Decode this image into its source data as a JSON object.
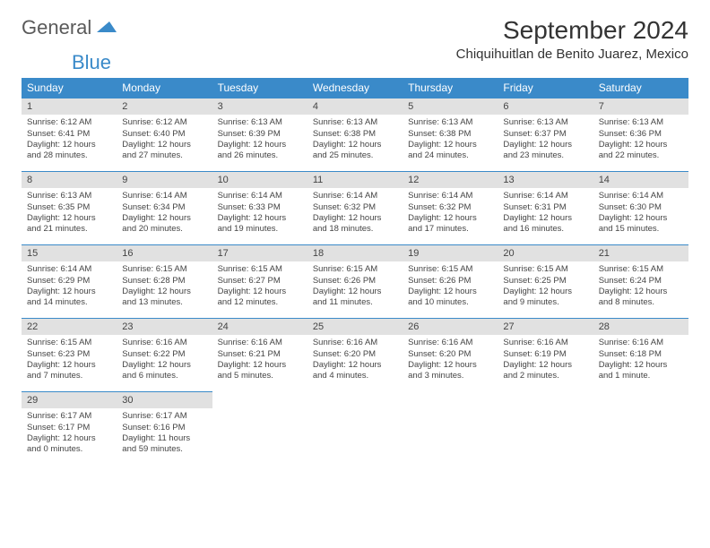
{
  "brand": {
    "part1": "General",
    "part2": "Blue"
  },
  "header": {
    "title": "September 2024",
    "location": "Chiquihuitlan de Benito Juarez, Mexico"
  },
  "style": {
    "accent": "#3a8ac9",
    "header_bg": "#3a8ac9",
    "header_fg": "#ffffff",
    "daynum_bg": "#e1e1e1",
    "text": "#444444",
    "title_fontsize": 28,
    "location_fontsize": 15,
    "th_fontsize": 12,
    "cell_fontsize": 9.5
  },
  "columns": [
    "Sunday",
    "Monday",
    "Tuesday",
    "Wednesday",
    "Thursday",
    "Friday",
    "Saturday"
  ],
  "days": [
    {
      "n": "1",
      "sr": "6:12 AM",
      "ss": "6:41 PM",
      "dl1": "12 hours",
      "dl2": "and 28 minutes."
    },
    {
      "n": "2",
      "sr": "6:12 AM",
      "ss": "6:40 PM",
      "dl1": "12 hours",
      "dl2": "and 27 minutes."
    },
    {
      "n": "3",
      "sr": "6:13 AM",
      "ss": "6:39 PM",
      "dl1": "12 hours",
      "dl2": "and 26 minutes."
    },
    {
      "n": "4",
      "sr": "6:13 AM",
      "ss": "6:38 PM",
      "dl1": "12 hours",
      "dl2": "and 25 minutes."
    },
    {
      "n": "5",
      "sr": "6:13 AM",
      "ss": "6:38 PM",
      "dl1": "12 hours",
      "dl2": "and 24 minutes."
    },
    {
      "n": "6",
      "sr": "6:13 AM",
      "ss": "6:37 PM",
      "dl1": "12 hours",
      "dl2": "and 23 minutes."
    },
    {
      "n": "7",
      "sr": "6:13 AM",
      "ss": "6:36 PM",
      "dl1": "12 hours",
      "dl2": "and 22 minutes."
    },
    {
      "n": "8",
      "sr": "6:13 AM",
      "ss": "6:35 PM",
      "dl1": "12 hours",
      "dl2": "and 21 minutes."
    },
    {
      "n": "9",
      "sr": "6:14 AM",
      "ss": "6:34 PM",
      "dl1": "12 hours",
      "dl2": "and 20 minutes."
    },
    {
      "n": "10",
      "sr": "6:14 AM",
      "ss": "6:33 PM",
      "dl1": "12 hours",
      "dl2": "and 19 minutes."
    },
    {
      "n": "11",
      "sr": "6:14 AM",
      "ss": "6:32 PM",
      "dl1": "12 hours",
      "dl2": "and 18 minutes."
    },
    {
      "n": "12",
      "sr": "6:14 AM",
      "ss": "6:32 PM",
      "dl1": "12 hours",
      "dl2": "and 17 minutes."
    },
    {
      "n": "13",
      "sr": "6:14 AM",
      "ss": "6:31 PM",
      "dl1": "12 hours",
      "dl2": "and 16 minutes."
    },
    {
      "n": "14",
      "sr": "6:14 AM",
      "ss": "6:30 PM",
      "dl1": "12 hours",
      "dl2": "and 15 minutes."
    },
    {
      "n": "15",
      "sr": "6:14 AM",
      "ss": "6:29 PM",
      "dl1": "12 hours",
      "dl2": "and 14 minutes."
    },
    {
      "n": "16",
      "sr": "6:15 AM",
      "ss": "6:28 PM",
      "dl1": "12 hours",
      "dl2": "and 13 minutes."
    },
    {
      "n": "17",
      "sr": "6:15 AM",
      "ss": "6:27 PM",
      "dl1": "12 hours",
      "dl2": "and 12 minutes."
    },
    {
      "n": "18",
      "sr": "6:15 AM",
      "ss": "6:26 PM",
      "dl1": "12 hours",
      "dl2": "and 11 minutes."
    },
    {
      "n": "19",
      "sr": "6:15 AM",
      "ss": "6:26 PM",
      "dl1": "12 hours",
      "dl2": "and 10 minutes."
    },
    {
      "n": "20",
      "sr": "6:15 AM",
      "ss": "6:25 PM",
      "dl1": "12 hours",
      "dl2": "and 9 minutes."
    },
    {
      "n": "21",
      "sr": "6:15 AM",
      "ss": "6:24 PM",
      "dl1": "12 hours",
      "dl2": "and 8 minutes."
    },
    {
      "n": "22",
      "sr": "6:15 AM",
      "ss": "6:23 PM",
      "dl1": "12 hours",
      "dl2": "and 7 minutes."
    },
    {
      "n": "23",
      "sr": "6:16 AM",
      "ss": "6:22 PM",
      "dl1": "12 hours",
      "dl2": "and 6 minutes."
    },
    {
      "n": "24",
      "sr": "6:16 AM",
      "ss": "6:21 PM",
      "dl1": "12 hours",
      "dl2": "and 5 minutes."
    },
    {
      "n": "25",
      "sr": "6:16 AM",
      "ss": "6:20 PM",
      "dl1": "12 hours",
      "dl2": "and 4 minutes."
    },
    {
      "n": "26",
      "sr": "6:16 AM",
      "ss": "6:20 PM",
      "dl1": "12 hours",
      "dl2": "and 3 minutes."
    },
    {
      "n": "27",
      "sr": "6:16 AM",
      "ss": "6:19 PM",
      "dl1": "12 hours",
      "dl2": "and 2 minutes."
    },
    {
      "n": "28",
      "sr": "6:16 AM",
      "ss": "6:18 PM",
      "dl1": "12 hours",
      "dl2": "and 1 minute."
    },
    {
      "n": "29",
      "sr": "6:17 AM",
      "ss": "6:17 PM",
      "dl1": "12 hours",
      "dl2": "and 0 minutes."
    },
    {
      "n": "30",
      "sr": "6:17 AM",
      "ss": "6:16 PM",
      "dl1": "11 hours",
      "dl2": "and 59 minutes."
    }
  ],
  "labels": {
    "sunrise": "Sunrise:",
    "sunset": "Sunset:",
    "daylight": "Daylight:"
  }
}
